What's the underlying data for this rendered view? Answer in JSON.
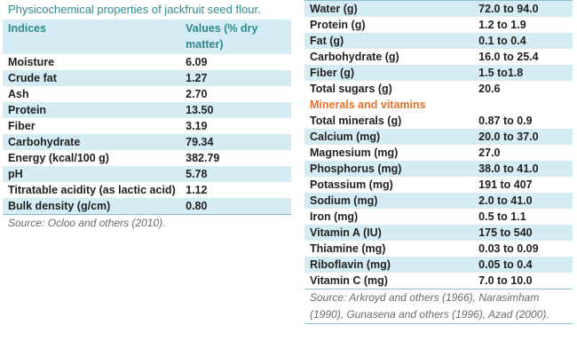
{
  "left_table": {
    "title": "Physicochemical  properties of jackfruit seed flour.",
    "header": {
      "col1": "Indices",
      "col2": "Values (% dry matter)"
    },
    "rows": [
      {
        "label": "Moisture",
        "value": "6.09"
      },
      {
        "label": "Crude fat",
        "value": "1.27"
      },
      {
        "label": "Ash",
        "value": "2.70"
      },
      {
        "label": "Protein",
        "value": "13.50"
      },
      {
        "label": "Fiber",
        "value": "3.19"
      },
      {
        "label": "Carbohydrate",
        "value": "79.34"
      },
      {
        "label": "Energy (kcal/100 g)",
        "value": "382.79"
      },
      {
        "label": "pH",
        "value": "5.78"
      },
      {
        "label": "Titratable acidity (as lactic acid)",
        "value": "1.12"
      },
      {
        "label": "Bulk density (g/cm)",
        "value": " 0.80"
      }
    ],
    "source": "Source: Ocloo and others (2010)."
  },
  "right_table": {
    "rows_top": [
      {
        "label": "Water (g)",
        "value": "72.0 to 94.0"
      },
      {
        "label": "Protein (g)",
        "value": "1.2 to 1.9"
      },
      {
        "label": "Fat (g)",
        "value": "0.1 to 0.4"
      },
      {
        "label": "Carbohydrate (g)",
        "value": "16.0 to 25.4"
      },
      {
        "label": "Fiber (g)",
        "value": "1.5 to1.8"
      },
      {
        "label": "Total sugars (g)",
        "value": "20.6"
      }
    ],
    "section_label": "Minerals and vitamins",
    "rows_bottom": [
      {
        "label": "Total minerals (g)",
        "value": " 0.87 to 0.9"
      },
      {
        "label": "Calcium (mg)",
        "value": "20.0 to 37.0"
      },
      {
        "label": "Magnesium (mg)",
        "value": "27.0"
      },
      {
        "label": "Phosphorus (mg)",
        "value": "38.0 to 41.0"
      },
      {
        "label": "Potassium (mg)",
        "value": "191 to 407"
      },
      {
        "label": "Sodium (mg)",
        "value": "2.0 to 41.0"
      },
      {
        "label": "Iron (mg)",
        "value": "0.5 to 1.1"
      },
      {
        "label": "Vitamin A (IU)",
        "value": "  175 to 540"
      },
      {
        "label": "Thiamine (mg)",
        "value": " 0.03 to 0.09"
      },
      {
        "label": "Riboflavin (mg)",
        "value": " 0.05 to 0.4"
      },
      {
        "label": "Vitamin C (mg)",
        "value": "7.0 to 10.0"
      }
    ],
    "source": "Source: Arkroyd and others (1966), Narasimham (1990), Gunasena and others (1996), Azad (2000)."
  },
  "colors": {
    "accent_teal": "#2f8a8f",
    "section_orange": "#e8702a",
    "row_shade": "#d5ecf5"
  }
}
